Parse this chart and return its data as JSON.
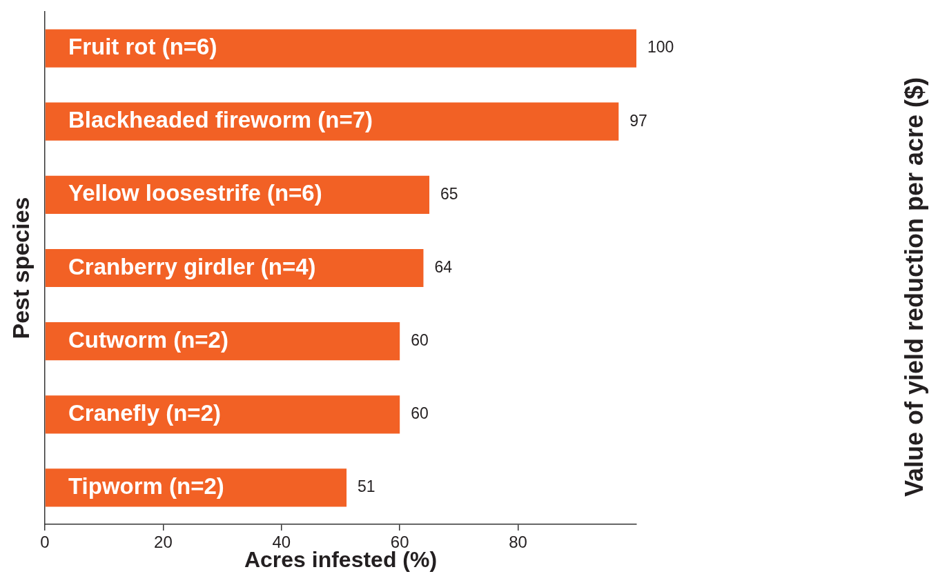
{
  "chart_data": {
    "type": "bar",
    "orientation": "horizontal",
    "categories": [
      "Fruit rot (n=6)",
      "Blackheaded fireworm (n=7)",
      "Yellow loosestrife (n=6)",
      "Cranberry girdler (n=4)",
      "Cutworm (n=2)",
      "Cranefly (n=2)",
      "Tipworm (n=2)"
    ],
    "values": [
      100,
      97,
      65,
      64,
      60,
      60,
      51
    ],
    "color": "#f26125",
    "xlabel": "Acres infested (%)",
    "ylabel": "Pest species",
    "annotations": [
      "Value of yield reduction per acre ($)"
    ],
    "xlim": [
      0,
      100
    ],
    "xticks": [
      0,
      20,
      40,
      60,
      80
    ],
    "data_labels": true
  }
}
